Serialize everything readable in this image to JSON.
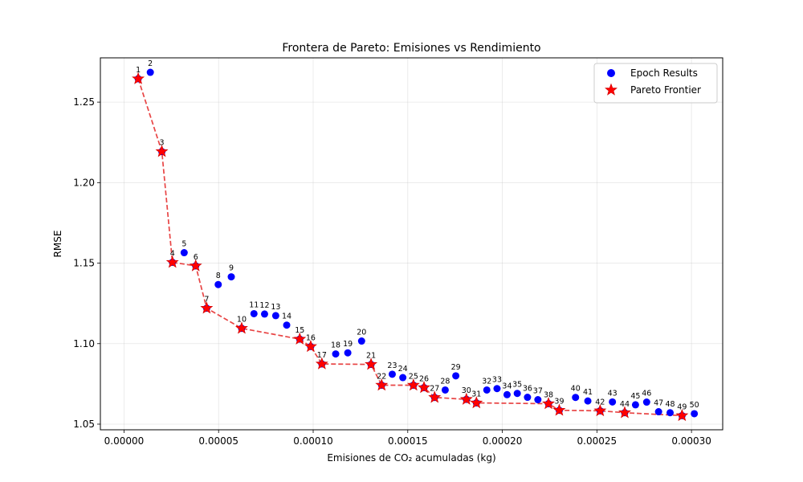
{
  "chart_data": {
    "type": "scatter",
    "title": "Frontera de Pareto: Emisiones vs Rendimiento",
    "xlabel": "Emisiones de CO₂ acumuladas (kg)",
    "ylabel": "RMSE",
    "xlim": [
      -1.25e-05,
      0.0003165
    ],
    "ylim": [
      1.0465,
      1.2775
    ],
    "xticks": [
      0.0,
      5e-05,
      0.0001,
      0.00015,
      0.0002,
      0.00025,
      0.0003
    ],
    "xtick_labels": [
      "0.00000",
      "0.00005",
      "0.00010",
      "0.00015",
      "0.00020",
      "0.00025",
      "0.00030"
    ],
    "yticks": [
      1.05,
      1.1,
      1.15,
      1.2,
      1.25
    ],
    "ytick_labels": [
      "1.05",
      "1.10",
      "1.15",
      "1.20",
      "1.25"
    ],
    "grid": true,
    "legend_position": "top-right",
    "series": [
      {
        "name": "Epoch Results",
        "marker": "circle",
        "color": "#0000ff",
        "labels": [
          "1",
          "2",
          "3",
          "4",
          "5",
          "6",
          "7",
          "8",
          "9",
          "10",
          "11",
          "12",
          "13",
          "14",
          "15",
          "16",
          "17",
          "18",
          "19",
          "20",
          "21",
          "22",
          "23",
          "24",
          "25",
          "26",
          "27",
          "28",
          "29",
          "30",
          "31",
          "32",
          "33",
          "34",
          "35",
          "36",
          "37",
          "38",
          "39",
          "40",
          "41",
          "42",
          "43",
          "44",
          "45",
          "46",
          "47",
          "48",
          "49",
          "50"
        ],
        "x": [
          7.5e-06,
          1.39e-05,
          2e-05,
          2.56e-05,
          3.18e-05,
          3.79e-05,
          4.37e-05,
          4.98e-05,
          5.67e-05,
          6.22e-05,
          6.87e-05,
          7.43e-05,
          8.02e-05,
          8.6e-05,
          9.29e-05,
          9.87e-05,
          0.0001046,
          0.0001119,
          0.0001183,
          0.0001256,
          0.0001306,
          0.0001362,
          0.0001418,
          0.0001474,
          0.000153,
          0.0001586,
          0.0001642,
          0.0001698,
          0.0001754,
          0.000181,
          0.0001863,
          0.0001918,
          0.0001972,
          0.0002025,
          0.0002079,
          0.0002133,
          0.0002188,
          0.0002244,
          0.0002301,
          0.0002387,
          0.0002452,
          0.0002517,
          0.0002582,
          0.0002647,
          0.0002704,
          0.0002763,
          0.0002826,
          0.0002887,
          0.000295,
          0.0003015
        ],
        "y": [
          1.2645,
          1.2685,
          1.2193,
          1.1505,
          1.1565,
          1.1483,
          1.122,
          1.1367,
          1.1415,
          1.1095,
          1.1186,
          1.1184,
          1.1174,
          1.1115,
          1.1028,
          1.0982,
          1.0874,
          1.0936,
          1.0943,
          1.1016,
          1.0871,
          1.0742,
          1.081,
          1.0789,
          1.0742,
          1.0727,
          1.0666,
          1.0712,
          1.08,
          1.0654,
          1.0632,
          1.0712,
          1.0721,
          1.0683,
          1.0691,
          1.0667,
          1.0652,
          1.0627,
          1.0586,
          1.0666,
          1.0644,
          1.0583,
          1.0638,
          1.0571,
          1.062,
          1.0637,
          1.0577,
          1.0571,
          1.0553,
          1.0565
        ]
      },
      {
        "name": "Pareto Frontier",
        "marker": "star",
        "color": "#ff0000",
        "line": "dashed",
        "x": [
          7.5e-06,
          2e-05,
          2.56e-05,
          3.79e-05,
          4.37e-05,
          6.22e-05,
          9.29e-05,
          9.87e-05,
          0.0001046,
          0.0001306,
          0.0001362,
          0.000153,
          0.0001586,
          0.0001642,
          0.000181,
          0.0001863,
          0.0002244,
          0.0002301,
          0.0002517,
          0.0002647,
          0.000295
        ],
        "y": [
          1.2645,
          1.2193,
          1.1505,
          1.1483,
          1.122,
          1.1095,
          1.1028,
          1.0982,
          1.0874,
          1.0871,
          1.0742,
          1.0742,
          1.0727,
          1.0666,
          1.0654,
          1.0632,
          1.0627,
          1.0586,
          1.0583,
          1.0571,
          1.0553
        ]
      }
    ]
  }
}
